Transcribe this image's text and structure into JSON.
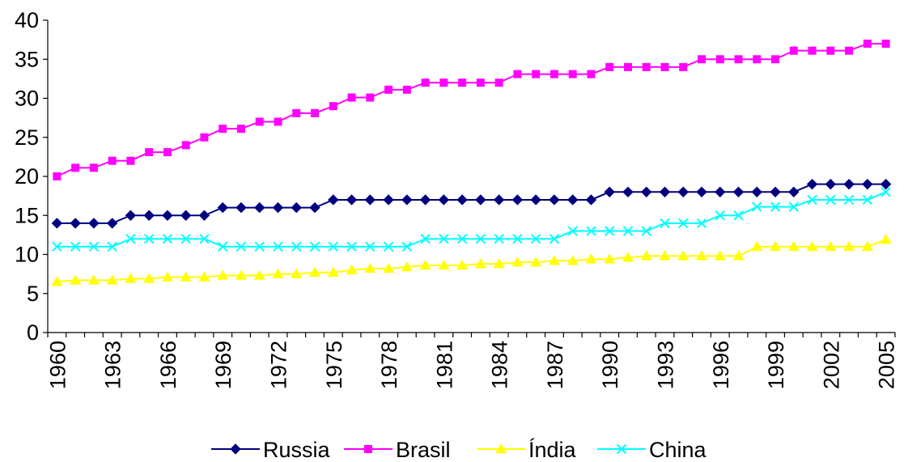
{
  "chart_data": {
    "type": "line",
    "title": "",
    "xlabel": "",
    "ylabel": "",
    "ylim": [
      0,
      40
    ],
    "yticks": [
      0,
      5,
      10,
      15,
      20,
      25,
      30,
      35,
      40
    ],
    "x": [
      1960,
      1961,
      1962,
      1963,
      1964,
      1965,
      1966,
      1967,
      1968,
      1969,
      1970,
      1971,
      1972,
      1973,
      1974,
      1975,
      1976,
      1977,
      1978,
      1979,
      1980,
      1981,
      1982,
      1983,
      1984,
      1985,
      1986,
      1987,
      1988,
      1989,
      1990,
      1991,
      1992,
      1993,
      1994,
      1995,
      1996,
      1997,
      1998,
      1999,
      2000,
      2001,
      2002,
      2003,
      2004,
      2005
    ],
    "xtick_labels": [
      "1960",
      "1963",
      "1966",
      "1969",
      "1972",
      "1975",
      "1978",
      "1981",
      "1984",
      "1987",
      "1990",
      "1993",
      "1996",
      "1999",
      "2002",
      "2005"
    ],
    "grid": false,
    "legend_position": "bottom",
    "series": [
      {
        "name": "Russia",
        "color": "#000080",
        "marker": "diamond",
        "values": [
          14,
          14,
          14,
          14,
          15,
          15,
          15,
          15,
          15,
          16,
          16,
          16,
          16,
          16,
          16,
          17,
          17,
          17,
          17,
          17,
          17,
          17,
          17,
          17,
          17,
          17,
          17,
          17,
          17,
          17,
          18,
          18,
          18,
          18,
          18,
          18,
          18,
          18,
          18,
          18,
          18,
          19,
          19,
          19,
          19,
          19
        ]
      },
      {
        "name": "Brasil",
        "color": "#FF00FF",
        "marker": "square",
        "values": [
          20,
          21.1,
          21.1,
          22,
          22,
          23.1,
          23.1,
          24,
          25,
          26.1,
          26.1,
          27,
          27,
          28.1,
          28.1,
          29,
          30.1,
          30.1,
          31.1,
          31.1,
          32,
          32,
          32,
          32,
          32,
          33.1,
          33.1,
          33.1,
          33.1,
          33.1,
          34,
          34,
          34,
          34,
          34,
          35,
          35,
          35,
          35,
          35,
          36.1,
          36.1,
          36.1,
          36.1,
          37,
          37
        ]
      },
      {
        "name": "Índia",
        "color": "#FFFF00",
        "marker": "triangle",
        "values": [
          6.5,
          6.7,
          6.7,
          6.7,
          6.9,
          6.9,
          7.1,
          7.1,
          7.1,
          7.3,
          7.3,
          7.3,
          7.5,
          7.5,
          7.7,
          7.7,
          8,
          8.2,
          8.2,
          8.4,
          8.6,
          8.6,
          8.6,
          8.8,
          8.8,
          9,
          9,
          9.2,
          9.2,
          9.4,
          9.4,
          9.6,
          9.8,
          9.8,
          9.8,
          9.8,
          9.8,
          9.8,
          11,
          11,
          11,
          11,
          11,
          11,
          11,
          11.9
        ]
      },
      {
        "name": "China",
        "color": "#00FFFF",
        "marker": "x",
        "values": [
          11,
          11,
          11,
          11,
          12,
          12,
          12,
          12,
          12,
          11,
          11,
          11,
          11,
          11,
          11,
          11,
          11,
          11,
          11,
          11,
          12,
          12,
          12,
          12,
          12,
          12,
          12,
          12,
          13,
          13,
          13,
          13,
          13,
          14,
          14,
          14,
          15,
          15,
          16.1,
          16.1,
          16.1,
          17,
          17,
          17,
          17,
          18
        ]
      }
    ]
  }
}
